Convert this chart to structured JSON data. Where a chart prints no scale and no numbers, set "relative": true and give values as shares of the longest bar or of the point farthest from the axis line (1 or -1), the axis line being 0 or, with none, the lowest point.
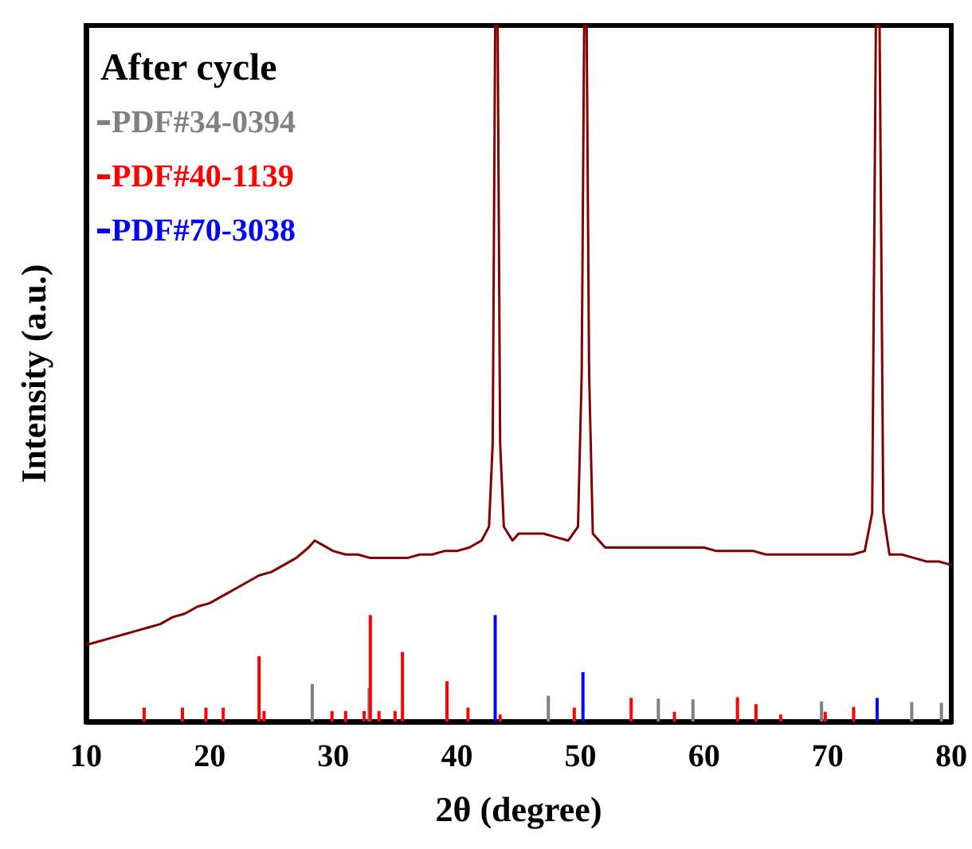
{
  "chart_data": {
    "type": "line",
    "title": "After cycle",
    "xlabel": "2θ (degree)",
    "ylabel": "Intensity (a.u.)",
    "relative": true,
    "xlim": [
      10,
      80
    ],
    "xticks": [
      10,
      20,
      30,
      40,
      50,
      60,
      70,
      80
    ],
    "grid": false,
    "legend": "top left",
    "marker": "none",
    "line_style": "solid",
    "series": [
      {
        "color": "#800000",
        "x": [
          10,
          11,
          12,
          13,
          14,
          15,
          16,
          17,
          18,
          19,
          20,
          21,
          22,
          23,
          24,
          25,
          26,
          27,
          28,
          28.5,
          29,
          30,
          31,
          32,
          33,
          34,
          35,
          36,
          37,
          38,
          39,
          40,
          41,
          42,
          42.6,
          42.9,
          43.1,
          43.3,
          43.5,
          43.8,
          44.5,
          45,
          46,
          47,
          48,
          49,
          49.8,
          50.1,
          50.3,
          50.5,
          50.7,
          51,
          52,
          53,
          54,
          55,
          56,
          57,
          58,
          59,
          60,
          61,
          62,
          63,
          64,
          65,
          66,
          67,
          68,
          69,
          70,
          71,
          72,
          73,
          73.6,
          73.9,
          74.2,
          74.5,
          75,
          76,
          77,
          78,
          79,
          80
        ],
        "values": [
          0.11,
          0.115,
          0.12,
          0.125,
          0.13,
          0.135,
          0.14,
          0.15,
          0.155,
          0.165,
          0.17,
          0.18,
          0.19,
          0.2,
          0.21,
          0.215,
          0.225,
          0.235,
          0.25,
          0.26,
          0.255,
          0.245,
          0.24,
          0.24,
          0.235,
          0.235,
          0.235,
          0.235,
          0.24,
          0.24,
          0.245,
          0.245,
          0.25,
          0.26,
          0.28,
          0.4,
          1,
          1,
          0.4,
          0.28,
          0.26,
          0.27,
          0.27,
          0.27,
          0.265,
          0.26,
          0.28,
          0.5,
          1,
          1,
          0.5,
          0.27,
          0.25,
          0.25,
          0.25,
          0.25,
          0.25,
          0.25,
          0.25,
          0.25,
          0.25,
          0.245,
          0.245,
          0.245,
          0.245,
          0.24,
          0.24,
          0.24,
          0.24,
          0.24,
          0.24,
          0.24,
          0.24,
          0.245,
          0.3,
          1,
          1,
          0.3,
          0.24,
          0.24,
          0.235,
          0.23,
          0.23,
          0.225
        ]
      },
      {
        "name": "PDF#34-0394",
        "type": "bar",
        "color": "#808080",
        "x": [
          28.3,
          32.9,
          47.4,
          56.3,
          59.1,
          69.5,
          76.8,
          79.2
        ],
        "values": [
          0.054,
          0.048,
          0.037,
          0.033,
          0.032,
          0.029,
          0.028,
          0.027
        ]
      },
      {
        "name": "PDF#40-1139",
        "type": "bar",
        "color": "#ff0000",
        "x": [
          14.7,
          17.8,
          19.7,
          21.1,
          24.0,
          24.4,
          29.9,
          31.0,
          32.5,
          33.0,
          33.7,
          35.0,
          35.6,
          39.2,
          40.9,
          43.5,
          49.5,
          54.1,
          57.6,
          62.7,
          64.2,
          66.2,
          69.8,
          72.1
        ],
        "values": [
          0.02,
          0.02,
          0.02,
          0.02,
          0.094,
          0.015,
          0.015,
          0.015,
          0.015,
          0.153,
          0.015,
          0.015,
          0.1,
          0.058,
          0.02,
          0.01,
          0.02,
          0.034,
          0.014,
          0.035,
          0.025,
          0.01,
          0.014,
          0.021
        ]
      },
      {
        "name": "PDF#70-3038",
        "type": "bar",
        "color": "#0000ff",
        "x": [
          43.1,
          50.2,
          74.0
        ],
        "values": [
          0.153,
          0.071,
          0.034
        ]
      }
    ]
  }
}
